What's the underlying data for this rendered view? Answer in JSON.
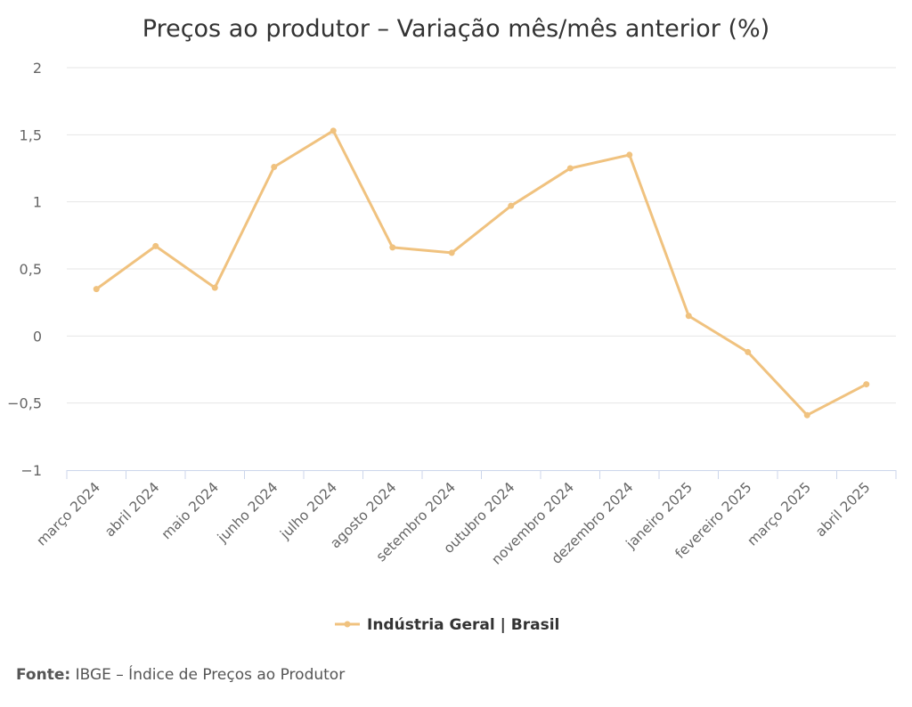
{
  "chart_data": {
    "type": "line",
    "title": "Preços ao produtor – Variação mês/mês anterior (%)",
    "categories": [
      "março 2024",
      "abril 2024",
      "maio 2024",
      "junho 2024",
      "julho 2024",
      "agosto 2024",
      "setembro 2024",
      "outubro 2024",
      "novembro 2024",
      "dezembro 2024",
      "janeiro 2025",
      "fevereiro 2025",
      "março 2025",
      "abril 2025"
    ],
    "series": [
      {
        "name": "Indústria Geral | Brasil",
        "color": "#f0c27f",
        "values": [
          0.35,
          0.67,
          0.36,
          1.26,
          1.53,
          0.66,
          0.62,
          0.97,
          1.25,
          1.35,
          0.15,
          -0.12,
          -0.59,
          -0.36
        ]
      }
    ],
    "ylim": [
      -1,
      2
    ],
    "yticks": [
      2,
      1.5,
      1,
      0.5,
      0,
      -0.5,
      -1
    ],
    "ytick_labels": [
      "2",
      "1,5",
      "1",
      "0,5",
      "0",
      "−0,5",
      "−1"
    ],
    "grid": true,
    "legend_position": "bottom-center"
  },
  "source": {
    "label": "Fonte:",
    "text": " IBGE – Índice de Preços ao Produtor"
  }
}
